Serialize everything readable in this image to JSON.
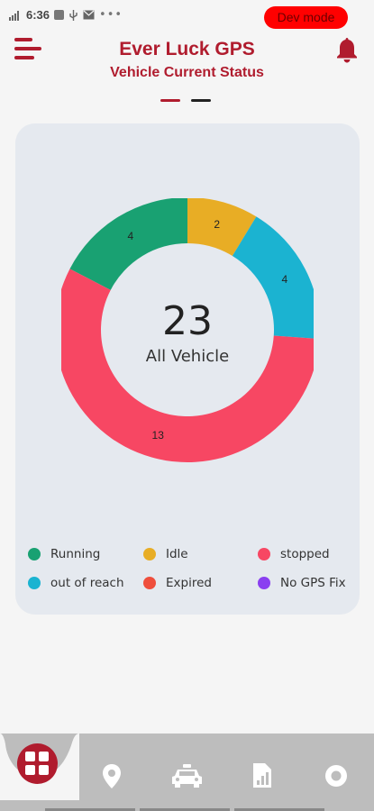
{
  "status_bar": {
    "time": "6:36",
    "dev_badge": "Dev mode"
  },
  "header": {
    "title": "Ever Luck GPS",
    "subtitle": "Vehicle Current Status",
    "page_indicator": {
      "count": 2,
      "active_index": 0
    }
  },
  "summary": {
    "total": "23",
    "total_label": "All Vehicle"
  },
  "chart_data": {
    "type": "pie",
    "title": "",
    "categories": [
      "Running",
      "Idle",
      "out of reach",
      "stopped"
    ],
    "values": [
      4,
      2,
      4,
      13
    ],
    "colors": [
      "#19a172",
      "#e8ad25",
      "#1bb3d1",
      "#f74763"
    ],
    "donut": true,
    "center_value": "23",
    "center_label": "All Vehicle"
  },
  "legend": [
    {
      "label": "Running",
      "color": "#19a172"
    },
    {
      "label": "Idle",
      "color": "#e8ad25"
    },
    {
      "label": "stopped",
      "color": "#f74763"
    },
    {
      "label": "out of reach",
      "color": "#1bb3d1"
    },
    {
      "label": "Expired",
      "color": "#ef4e3c"
    },
    {
      "label": "No GPS Fix",
      "color": "#8a3ff0"
    }
  ],
  "bottom_nav": {
    "items": [
      {
        "icon": "dashboard-grid-icon",
        "active": true
      },
      {
        "icon": "location-pin-icon"
      },
      {
        "icon": "car-icon"
      },
      {
        "icon": "report-document-icon"
      },
      {
        "icon": "circle-settings-icon"
      }
    ]
  },
  "colors": {
    "brand": "#b01c2e",
    "background": "#f5f5f5",
    "card": "#e5e9ef",
    "nav_bar": "#bdbdbd"
  }
}
